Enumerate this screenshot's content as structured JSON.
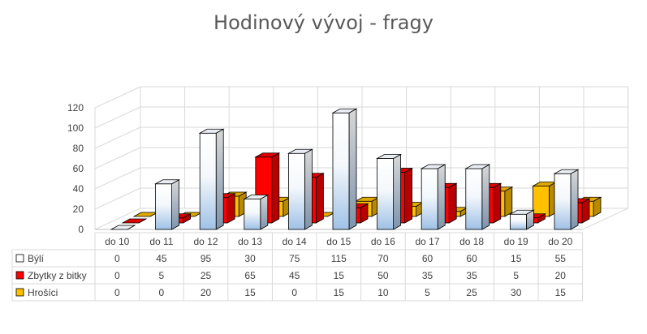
{
  "chart_data": {
    "type": "bar",
    "title": "Hodinový vývoj - fragy",
    "categories": [
      "do 10",
      "do 11",
      "do 12",
      "do 13",
      "do 14",
      "do 15",
      "do 16",
      "do 17",
      "do 18",
      "do 19",
      "do 20"
    ],
    "series": [
      {
        "name": "Býlí",
        "values": [
          0,
          45,
          95,
          30,
          75,
          115,
          70,
          60,
          60,
          15,
          55
        ],
        "color": "#ffffff"
      },
      {
        "name": "Zbytky z bitky",
        "values": [
          0,
          5,
          25,
          65,
          45,
          15,
          50,
          35,
          35,
          5,
          20
        ],
        "color": "#ff0000"
      },
      {
        "name": "Hrošíci",
        "values": [
          0,
          0,
          20,
          15,
          0,
          15,
          10,
          5,
          25,
          30,
          15
        ],
        "color": "#ffc000"
      }
    ],
    "yticks": [
      0,
      20,
      40,
      60,
      80,
      100,
      120
    ],
    "ylim": [
      0,
      120
    ],
    "grid": true,
    "legend": "data-table"
  }
}
